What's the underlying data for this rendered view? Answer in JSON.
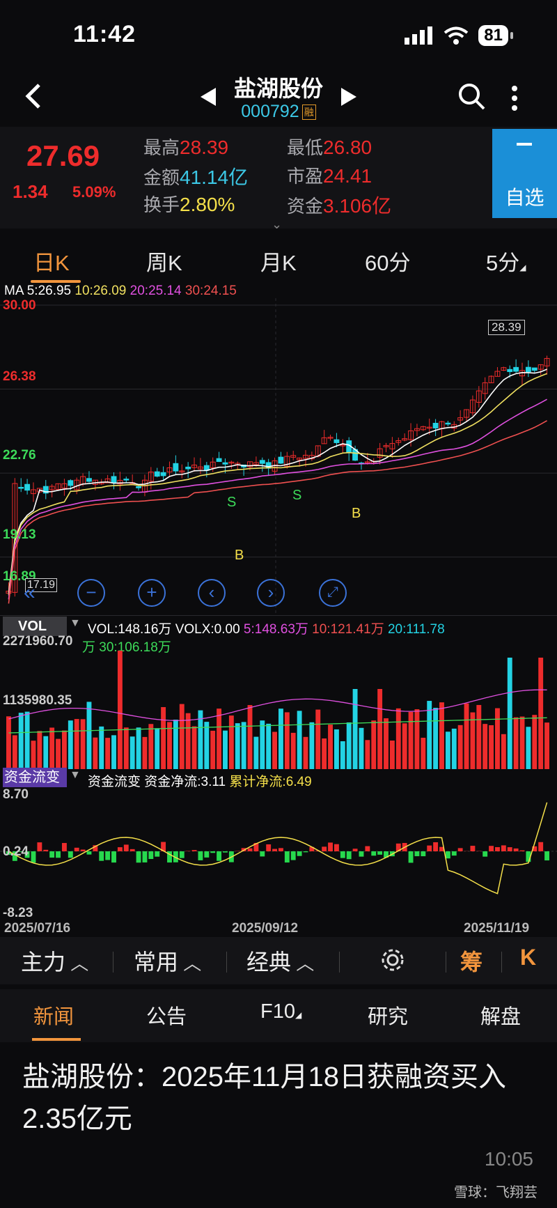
{
  "status_bar": {
    "time": "11:42",
    "battery": "81"
  },
  "header": {
    "title": "盐湖股份",
    "code": "000792",
    "tag": "融"
  },
  "quote": {
    "price": "27.69",
    "change": "1.34",
    "change_pct": "5.09%",
    "high_label": "最高",
    "high": "28.39",
    "low_label": "最低",
    "low": "26.80",
    "amount_label": "金额",
    "amount": "41.14亿",
    "pe_label": "市盈",
    "pe": "24.41",
    "turnover_label": "换手",
    "turnover": "2.80%",
    "fund_label": "资金",
    "fund": "3.106亿",
    "watch_minus": "−",
    "watch_label": "自选"
  },
  "k_tabs": [
    "日K",
    "周K",
    "月K",
    "60分",
    "5分"
  ],
  "ma": {
    "ma5": "MA 5:26.95",
    "ma10": "10:26.09",
    "ma20": "20:25.14",
    "ma30": "30:24.15"
  },
  "colors": {
    "up": "#ee2c2c",
    "down": "#23d3e4",
    "ma5": "#ffffff",
    "ma10": "#f0e060",
    "ma20": "#e050e0",
    "ma30": "#f05050",
    "accent": "#f2953d",
    "blue": "#1b8fd7"
  },
  "price_axis": {
    "top": "30.00",
    "l2": "26.38",
    "l3": "22.76",
    "l4": "19.13",
    "bottom": "16.89"
  },
  "chart_labels": {
    "max_price": "28.39",
    "min_price": "17.19",
    "sell": "S",
    "buy": "B"
  },
  "chart_controls": [
    "back-double-icon",
    "zoom-out-icon",
    "zoom-in-icon",
    "prev-icon",
    "next-icon",
    "fullscreen-icon"
  ],
  "vol": {
    "tag": "VOL",
    "main": "VOL:148.16万 VOLX:0.00",
    "v5": "5:148.63万",
    "v10": "10:121.41万",
    "v20": "20:111.78",
    "v30": "万 30:106.18万",
    "ax_top": "2271960.70",
    "ax_mid": "1135980.35"
  },
  "fund_flow": {
    "tag": "资金流变",
    "main": "资金流变 资金净流:3.11",
    "cum": "累计净流:6.49",
    "ax_top": "8.70",
    "ax_mid": "0.24",
    "ax_bottom": "-8.23"
  },
  "dates": [
    "2025/07/16",
    "2025/09/12",
    "2025/11/19"
  ],
  "toolbar": {
    "main": "主力",
    "common": "常用",
    "classic": "经典",
    "chip": "筹",
    "k": "K"
  },
  "news_tabs": [
    "新闻",
    "公告",
    "F10",
    "研究",
    "解盘"
  ],
  "news": {
    "title": "盐湖股份：2025年11月18日获融资买入2.35亿元",
    "time": "10:05"
  },
  "watermark": "雪球：飞翔芸",
  "chart_data": {
    "type": "candlestick",
    "x_range": [
      "2025/07/16",
      "2025/11/19"
    ],
    "y_range": [
      16.89,
      30.0
    ],
    "highest": 28.39,
    "lowest": 17.19,
    "last_close": 27.69,
    "ma": {
      "ma5": 26.95,
      "ma10": 26.09,
      "ma20": 25.14,
      "ma30": 24.15
    }
  }
}
